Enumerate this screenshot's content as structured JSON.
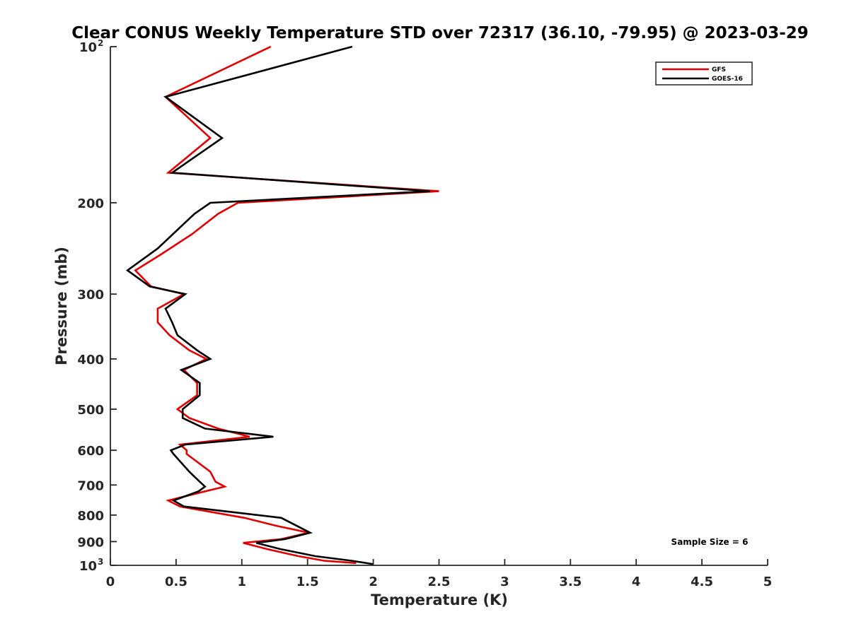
{
  "chart_data": {
    "type": "line",
    "title": "Clear CONUS Weekly Temperature STD over 72317 (36.10, -79.95) @ 2023-03-29",
    "xlabel": "Temperature (K)",
    "ylabel": "Pressure (mb)",
    "xlim": [
      0,
      5
    ],
    "ylim": [
      100,
      1000
    ],
    "y_scale": "log",
    "y_reversed": true,
    "grid": false,
    "legend_position": "top-right",
    "x_ticks": [
      {
        "value": 0,
        "label": "0"
      },
      {
        "value": 0.5,
        "label": "0.5"
      },
      {
        "value": 1,
        "label": "1"
      },
      {
        "value": 1.5,
        "label": "1.5"
      },
      {
        "value": 2,
        "label": "2"
      },
      {
        "value": 2.5,
        "label": "2.5"
      },
      {
        "value": 3,
        "label": "3"
      },
      {
        "value": 3.5,
        "label": "3.5"
      },
      {
        "value": 4,
        "label": "4"
      },
      {
        "value": 4.5,
        "label": "4.5"
      },
      {
        "value": 5,
        "label": "5"
      }
    ],
    "y_ticks": [
      {
        "value": 100,
        "label": "10",
        "exp": "2"
      },
      {
        "value": 200,
        "label": "200"
      },
      {
        "value": 300,
        "label": "300"
      },
      {
        "value": 400,
        "label": "400"
      },
      {
        "value": 500,
        "label": "500"
      },
      {
        "value": 600,
        "label": "600"
      },
      {
        "value": 700,
        "label": "700"
      },
      {
        "value": 800,
        "label": "800"
      },
      {
        "value": 900,
        "label": "900"
      },
      {
        "value": 1000,
        "label": "10",
        "exp": "3"
      }
    ],
    "annotation": "Sample Size = 6",
    "series": [
      {
        "name": "GFS",
        "color": "#e00000",
        "points": [
          [
            1.22,
            100
          ],
          [
            0.42,
            125
          ],
          [
            0.76,
            150
          ],
          [
            0.44,
            175
          ],
          [
            2.5,
            190
          ],
          [
            0.97,
            200
          ],
          [
            0.82,
            210
          ],
          [
            0.62,
            230
          ],
          [
            0.38,
            252
          ],
          [
            0.19,
            270
          ],
          [
            0.31,
            290
          ],
          [
            0.56,
            300
          ],
          [
            0.36,
            320
          ],
          [
            0.36,
            340
          ],
          [
            0.45,
            360
          ],
          [
            0.6,
            385
          ],
          [
            0.73,
            400
          ],
          [
            0.56,
            420
          ],
          [
            0.66,
            445
          ],
          [
            0.66,
            470
          ],
          [
            0.51,
            500
          ],
          [
            0.6,
            520
          ],
          [
            0.82,
            545
          ],
          [
            1.06,
            565
          ],
          [
            0.53,
            585
          ],
          [
            0.58,
            600
          ],
          [
            0.58,
            610
          ],
          [
            0.76,
            660
          ],
          [
            0.8,
            690
          ],
          [
            0.87,
            705
          ],
          [
            0.72,
            720
          ],
          [
            0.44,
            750
          ],
          [
            0.53,
            770
          ],
          [
            1.02,
            810
          ],
          [
            1.27,
            840
          ],
          [
            1.51,
            865
          ],
          [
            1.3,
            890
          ],
          [
            1.01,
            905
          ],
          [
            1.19,
            930
          ],
          [
            1.43,
            960
          ],
          [
            1.63,
            980
          ],
          [
            1.87,
            990
          ]
        ]
      },
      {
        "name": "GOES-16",
        "color": "#000000",
        "points": [
          [
            1.84,
            100
          ],
          [
            0.42,
            125
          ],
          [
            0.85,
            150
          ],
          [
            0.47,
            175
          ],
          [
            2.43,
            190
          ],
          [
            0.76,
            200
          ],
          [
            0.64,
            210
          ],
          [
            0.36,
            245
          ],
          [
            0.13,
            270
          ],
          [
            0.3,
            290
          ],
          [
            0.57,
            300
          ],
          [
            0.42,
            320
          ],
          [
            0.47,
            340
          ],
          [
            0.51,
            360
          ],
          [
            0.66,
            385
          ],
          [
            0.76,
            400
          ],
          [
            0.54,
            420
          ],
          [
            0.68,
            445
          ],
          [
            0.68,
            470
          ],
          [
            0.55,
            500
          ],
          [
            0.55,
            520
          ],
          [
            0.72,
            545
          ],
          [
            1.24,
            565
          ],
          [
            0.57,
            585
          ],
          [
            0.46,
            600
          ],
          [
            0.48,
            610
          ],
          [
            0.6,
            660
          ],
          [
            0.68,
            690
          ],
          [
            0.72,
            705
          ],
          [
            0.67,
            720
          ],
          [
            0.48,
            750
          ],
          [
            0.56,
            770
          ],
          [
            1.3,
            810
          ],
          [
            1.52,
            865
          ],
          [
            1.33,
            890
          ],
          [
            1.11,
            905
          ],
          [
            1.29,
            930
          ],
          [
            1.56,
            960
          ],
          [
            1.84,
            980
          ],
          [
            2.0,
            995
          ]
        ]
      }
    ]
  }
}
